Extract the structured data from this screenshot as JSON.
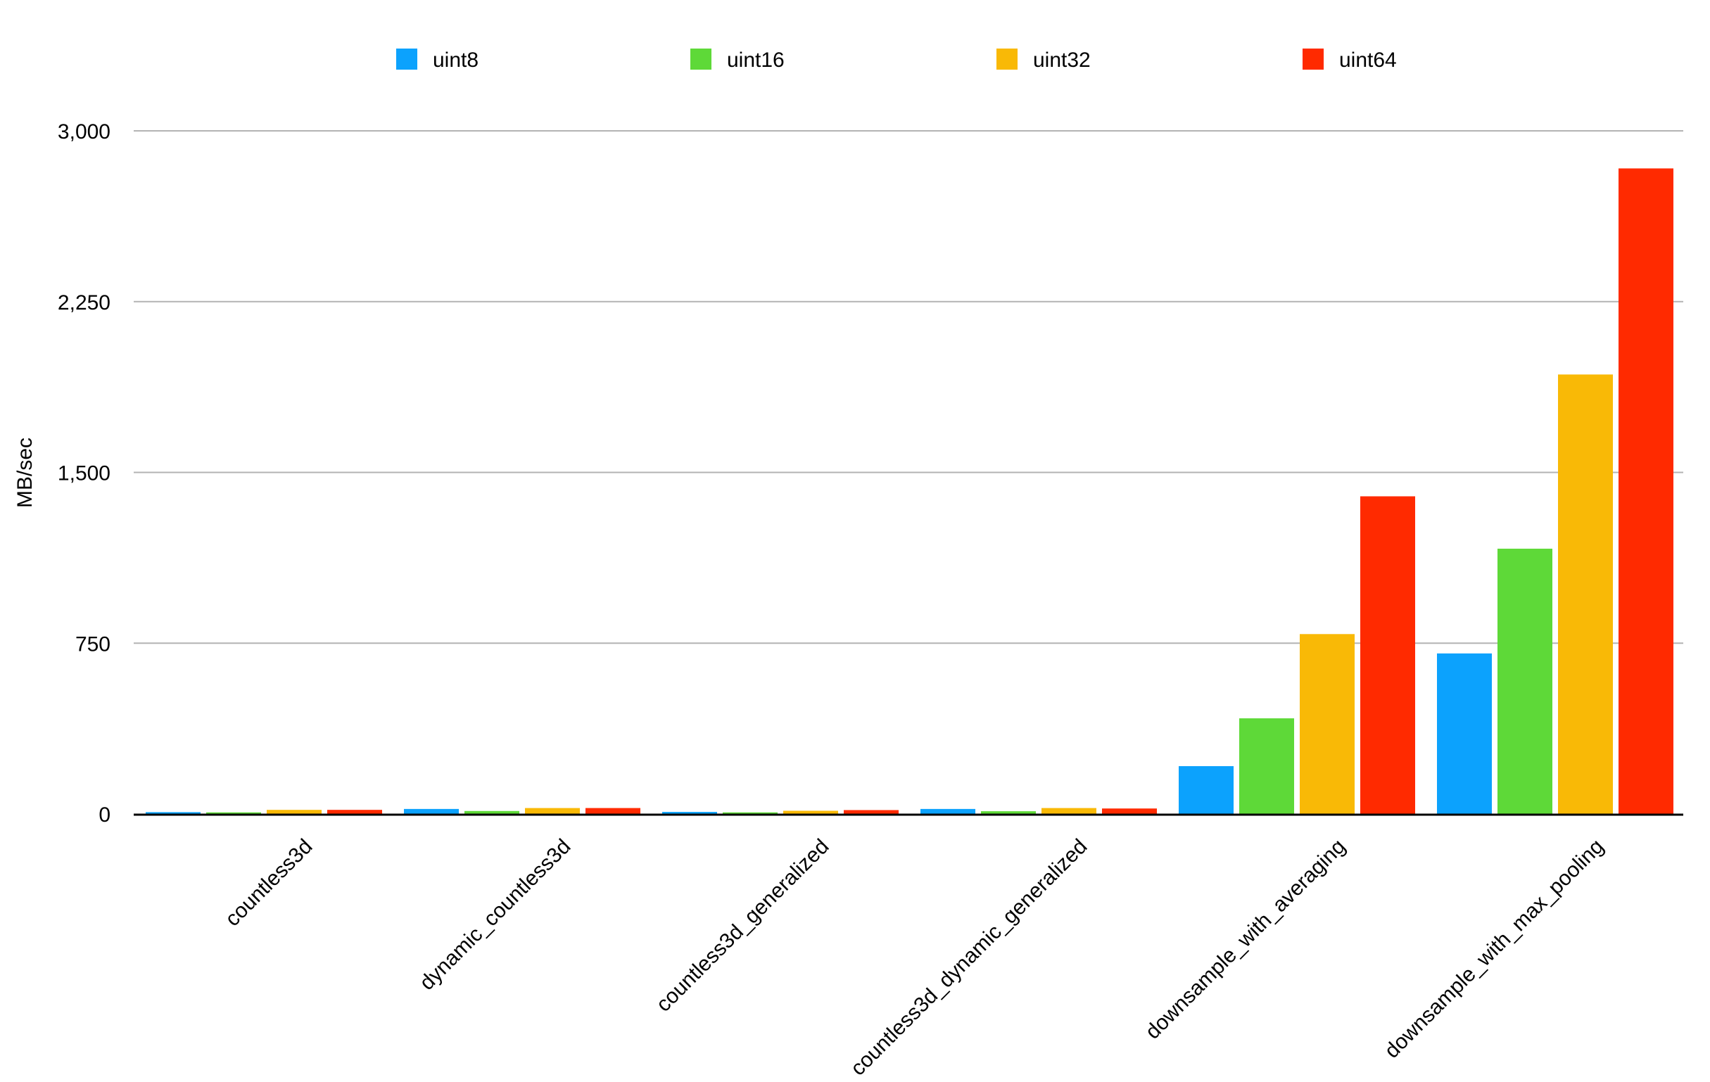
{
  "chart_data": {
    "type": "bar",
    "title": "",
    "xlabel": "",
    "ylabel": "MB/sec",
    "ylim": [
      0,
      3000
    ],
    "yticks": [
      0,
      750,
      1500,
      2250,
      3000
    ],
    "ytick_labels": [
      "0",
      "750",
      "1,500",
      "2,250",
      "3,000"
    ],
    "grid": true,
    "legend": "top-center",
    "categories": [
      "countless3d",
      "dynamic_countless3d",
      "countless3d_generalized",
      "countless3d_dynamic_generalized",
      "downsample_with_averaging",
      "downsample_with_max_pooling"
    ],
    "series": [
      {
        "name": "uint8",
        "color": "#0ca2fd",
        "values": [
          8,
          22,
          9,
          22,
          210,
          705
        ]
      },
      {
        "name": "uint16",
        "color": "#5ed938",
        "values": [
          7,
          13,
          7,
          12,
          420,
          1165
        ]
      },
      {
        "name": "uint32",
        "color": "#f9b906",
        "values": [
          18,
          26,
          14,
          26,
          790,
          1930
        ]
      },
      {
        "name": "uint64",
        "color": "#ff2a00",
        "values": [
          18,
          26,
          17,
          24,
          1395,
          2835
        ]
      }
    ]
  }
}
